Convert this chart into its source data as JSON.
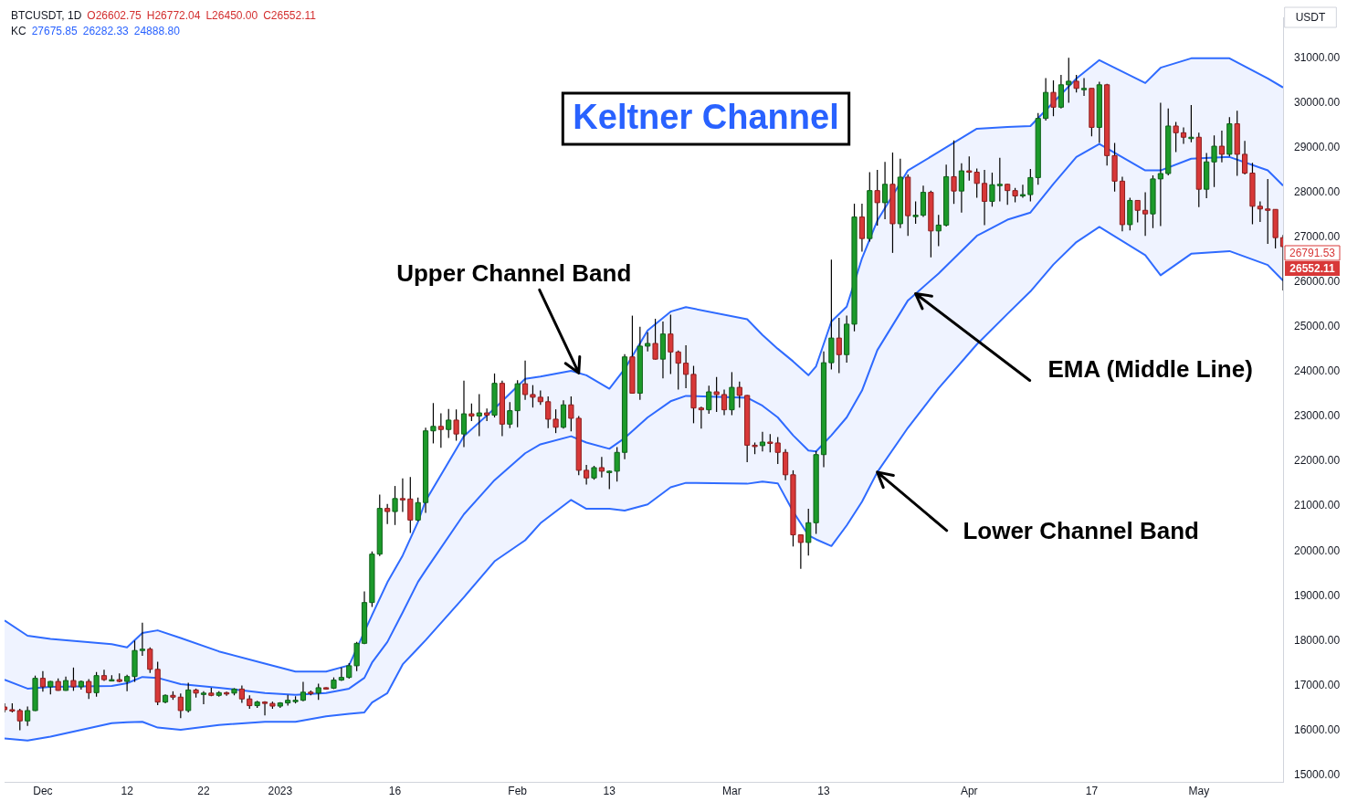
{
  "chart_data": {
    "type": "candlestick",
    "title": "Keltner Channel",
    "annotations": [
      "BTCUSDT, 1D",
      "O26602.75",
      "H26772.04",
      "L26450.00",
      "C26552.11",
      "KC",
      "27675.85",
      "26282.33",
      "24888.80",
      "USDT",
      "26791.53",
      "26552.11",
      {
        "text": "Upper Channel Band",
        "x": "2023-02-09",
        "y": 23970
      },
      {
        "text": "EMA (Middle Line)",
        "x": "2023-03-25",
        "y": 25740
      },
      {
        "text": "Lower Channel Band",
        "x": "2023-03-20",
        "y": 21760
      }
    ],
    "x": [
      "2022-11-26",
      "2022-11-27",
      "2022-11-28",
      "2022-11-29",
      "2022-11-30",
      "2022-12-01",
      "2022-12-02",
      "2022-12-03",
      "2022-12-04",
      "2022-12-05",
      "2022-12-06",
      "2022-12-07",
      "2022-12-08",
      "2022-12-09",
      "2022-12-10",
      "2022-12-11",
      "2022-12-12",
      "2022-12-13",
      "2022-12-14",
      "2022-12-15",
      "2022-12-16",
      "2022-12-17",
      "2022-12-18",
      "2022-12-19",
      "2022-12-20",
      "2022-12-21",
      "2022-12-22",
      "2022-12-23",
      "2022-12-24",
      "2022-12-25",
      "2022-12-26",
      "2022-12-27",
      "2022-12-28",
      "2022-12-29",
      "2022-12-30",
      "2022-12-31",
      "2023-01-01",
      "2023-01-02",
      "2023-01-03",
      "2023-01-04",
      "2023-01-05",
      "2023-01-06",
      "2023-01-07",
      "2023-01-08",
      "2023-01-09",
      "2023-01-10",
      "2023-01-11",
      "2023-01-12",
      "2023-01-13",
      "2023-01-14",
      "2023-01-15",
      "2023-01-16",
      "2023-01-17",
      "2023-01-18",
      "2023-01-19",
      "2023-01-20",
      "2023-01-21",
      "2023-01-22",
      "2023-01-23",
      "2023-01-24",
      "2023-01-25",
      "2023-01-26",
      "2023-01-27",
      "2023-01-28",
      "2023-01-29",
      "2023-01-30",
      "2023-01-31",
      "2023-02-01",
      "2023-02-02",
      "2023-02-03",
      "2023-02-04",
      "2023-02-05",
      "2023-02-06",
      "2023-02-07",
      "2023-02-08",
      "2023-02-09",
      "2023-02-10",
      "2023-02-11",
      "2023-02-12",
      "2023-02-13",
      "2023-02-14",
      "2023-02-15",
      "2023-02-16",
      "2023-02-17",
      "2023-02-18",
      "2023-02-19",
      "2023-02-20",
      "2023-02-21",
      "2023-02-22",
      "2023-02-23",
      "2023-02-24",
      "2023-02-25",
      "2023-02-26",
      "2023-02-27",
      "2023-02-28",
      "2023-03-01",
      "2023-03-02",
      "2023-03-03",
      "2023-03-04",
      "2023-03-05",
      "2023-03-06",
      "2023-03-07",
      "2023-03-08",
      "2023-03-09",
      "2023-03-10",
      "2023-03-11",
      "2023-03-12",
      "2023-03-13",
      "2023-03-14",
      "2023-03-15",
      "2023-03-16",
      "2023-03-17",
      "2023-03-18",
      "2023-03-19",
      "2023-03-20",
      "2023-03-21",
      "2023-03-22",
      "2023-03-23",
      "2023-03-24",
      "2023-03-25",
      "2023-03-26",
      "2023-03-27",
      "2023-03-28",
      "2023-03-29",
      "2023-03-30",
      "2023-03-31",
      "2023-04-01",
      "2023-04-02",
      "2023-04-03",
      "2023-04-04",
      "2023-04-05",
      "2023-04-06",
      "2023-04-07",
      "2023-04-08",
      "2023-04-09",
      "2023-04-10",
      "2023-04-11",
      "2023-04-12",
      "2023-04-13",
      "2023-04-14",
      "2023-04-15",
      "2023-04-16",
      "2023-04-17",
      "2023-04-18",
      "2023-04-19",
      "2023-04-20",
      "2023-04-21",
      "2023-04-22",
      "2023-04-23",
      "2023-04-24",
      "2023-04-25",
      "2023-04-26",
      "2023-04-27",
      "2023-04-28",
      "2023-04-29",
      "2023-04-30",
      "2023-05-01",
      "2023-05-02",
      "2023-05-03",
      "2023-05-04",
      "2023-05-05",
      "2023-05-06",
      "2023-05-07",
      "2023-05-08",
      "2023-05-09",
      "2023-05-10",
      "2023-05-11",
      "2023-05-12"
    ],
    "ohlc": [
      [
        16520,
        16600,
        16400,
        16460
      ],
      [
        16460,
        16600,
        16400,
        16440
      ],
      [
        16440,
        16480,
        16000,
        16210
      ],
      [
        16210,
        16530,
        16100,
        16440
      ],
      [
        16440,
        17220,
        16430,
        17160
      ],
      [
        17160,
        17320,
        16860,
        16970
      ],
      [
        16970,
        17100,
        16800,
        17090
      ],
      [
        17090,
        17160,
        16880,
        16890
      ],
      [
        16890,
        17200,
        16880,
        17110
      ],
      [
        17110,
        17400,
        16880,
        16970
      ],
      [
        16970,
        17110,
        16910,
        17090
      ],
      [
        17090,
        17140,
        16700,
        16840
      ],
      [
        16840,
        17300,
        16750,
        17220
      ],
      [
        17220,
        17350,
        17100,
        17130
      ],
      [
        17130,
        17230,
        17090,
        17130
      ],
      [
        17130,
        17270,
        17070,
        17090
      ],
      [
        17090,
        17240,
        16870,
        17200
      ],
      [
        17200,
        18000,
        17080,
        17780
      ],
      [
        17780,
        18400,
        17660,
        17810
      ],
      [
        17810,
        17850,
        17280,
        17360
      ],
      [
        17360,
        17530,
        16560,
        16630
      ],
      [
        16630,
        16800,
        16600,
        16780
      ],
      [
        16780,
        16870,
        16680,
        16740
      ],
      [
        16740,
        16820,
        16270,
        16440
      ],
      [
        16440,
        17060,
        16400,
        16900
      ],
      [
        16900,
        16930,
        16730,
        16830
      ],
      [
        16830,
        16870,
        16580,
        16830
      ],
      [
        16830,
        16950,
        16760,
        16780
      ],
      [
        16780,
        16870,
        16750,
        16840
      ],
      [
        16840,
        16860,
        16770,
        16830
      ],
      [
        16830,
        16940,
        16780,
        16920
      ],
      [
        16920,
        17000,
        16610,
        16700
      ],
      [
        16700,
        16780,
        16480,
        16550
      ],
      [
        16550,
        16660,
        16500,
        16630
      ],
      [
        16630,
        16650,
        16330,
        16600
      ],
      [
        16600,
        16640,
        16480,
        16540
      ],
      [
        16540,
        16630,
        16500,
        16610
      ],
      [
        16610,
        16790,
        16550,
        16670
      ],
      [
        16670,
        16760,
        16600,
        16670
      ],
      [
        16670,
        17080,
        16650,
        16850
      ],
      [
        16850,
        16890,
        16780,
        16830
      ],
      [
        16830,
        17040,
        16680,
        16950
      ],
      [
        16950,
        16960,
        16910,
        16940
      ],
      [
        16940,
        17180,
        16920,
        17120
      ],
      [
        17120,
        17400,
        17100,
        17180
      ],
      [
        17180,
        17500,
        17150,
        17440
      ],
      [
        17440,
        17970,
        17320,
        17940
      ],
      [
        17940,
        19100,
        17920,
        18850
      ],
      [
        18850,
        19990,
        18750,
        19930
      ],
      [
        19930,
        21260,
        19890,
        20950
      ],
      [
        20950,
        21050,
        20600,
        20880
      ],
      [
        20880,
        21450,
        20580,
        21170
      ],
      [
        21170,
        21620,
        20870,
        21160
      ],
      [
        21160,
        21650,
        20400,
        20690
      ],
      [
        20690,
        21190,
        20660,
        21080
      ],
      [
        21080,
        22750,
        20850,
        22680
      ],
      [
        22680,
        23300,
        22400,
        22780
      ],
      [
        22780,
        23070,
        22300,
        22710
      ],
      [
        22710,
        23170,
        22520,
        22920
      ],
      [
        22920,
        23160,
        22460,
        22610
      ],
      [
        22610,
        23800,
        22320,
        23060
      ],
      [
        23060,
        23290,
        22900,
        23010
      ],
      [
        23010,
        23500,
        22560,
        23080
      ],
      [
        23080,
        23180,
        22900,
        23030
      ],
      [
        23030,
        23960,
        22980,
        23740
      ],
      [
        23740,
        23800,
        22560,
        22830
      ],
      [
        22830,
        23320,
        22740,
        23130
      ],
      [
        23130,
        23810,
        22760,
        23730
      ],
      [
        23730,
        24250,
        23370,
        23490
      ],
      [
        23490,
        23700,
        23200,
        23430
      ],
      [
        23430,
        23580,
        23260,
        23330
      ],
      [
        23330,
        23450,
        22740,
        22940
      ],
      [
        22940,
        23160,
        22630,
        22760
      ],
      [
        22760,
        23360,
        22730,
        23260
      ],
      [
        23260,
        23450,
        22670,
        22960
      ],
      [
        22960,
        23010,
        21690,
        21800
      ],
      [
        21800,
        21920,
        21480,
        21630
      ],
      [
        21630,
        21900,
        21590,
        21860
      ],
      [
        21860,
        22100,
        21640,
        21780
      ],
      [
        21780,
        21800,
        21380,
        21780
      ],
      [
        21780,
        22320,
        21550,
        22200
      ],
      [
        22200,
        24390,
        22050,
        24330
      ],
      [
        24330,
        25250,
        23510,
        23520
      ],
      [
        23520,
        25000,
        23370,
        24570
      ],
      [
        24570,
        24880,
        24450,
        24630
      ],
      [
        24630,
        25180,
        24270,
        24280
      ],
      [
        24280,
        25120,
        23850,
        24840
      ],
      [
        24840,
        25270,
        23950,
        24440
      ],
      [
        24440,
        24470,
        23600,
        24190
      ],
      [
        24190,
        24590,
        23630,
        23940
      ],
      [
        23940,
        24130,
        22850,
        23190
      ],
      [
        23190,
        23220,
        22730,
        23150
      ],
      [
        23150,
        23690,
        23060,
        23550
      ],
      [
        23550,
        23880,
        23100,
        23490
      ],
      [
        23490,
        23600,
        23030,
        23150
      ],
      [
        23150,
        23990,
        23030,
        23650
      ],
      [
        23650,
        23780,
        23200,
        23470
      ],
      [
        23470,
        23480,
        21980,
        22360
      ],
      [
        22360,
        22420,
        22160,
        22350
      ],
      [
        22350,
        22660,
        22220,
        22430
      ],
      [
        22430,
        22610,
        22200,
        22410
      ],
      [
        22410,
        22540,
        21940,
        22200
      ],
      [
        22200,
        22270,
        21580,
        21700
      ],
      [
        21700,
        21800,
        20100,
        20360
      ],
      [
        20360,
        20360,
        19600,
        20190
      ],
      [
        20190,
        20940,
        19900,
        20630
      ],
      [
        20630,
        22230,
        20380,
        22150
      ],
      [
        22150,
        24450,
        21870,
        24200
      ],
      [
        24200,
        26500,
        24050,
        24750
      ],
      [
        24750,
        25200,
        23970,
        24380
      ],
      [
        24380,
        25250,
        24200,
        25060
      ],
      [
        25060,
        27750,
        24900,
        27450
      ],
      [
        27450,
        27750,
        26680,
        26970
      ],
      [
        26970,
        28450,
        26900,
        28040
      ],
      [
        28040,
        28500,
        27260,
        27770
      ],
      [
        27770,
        28680,
        27400,
        28180
      ],
      [
        28180,
        28890,
        26650,
        27300
      ],
      [
        27300,
        28750,
        27200,
        28340
      ],
      [
        28340,
        28400,
        27030,
        27480
      ],
      [
        27480,
        27800,
        27300,
        27490
      ],
      [
        27490,
        28150,
        27450,
        28000
      ],
      [
        28000,
        28040,
        26550,
        27140
      ],
      [
        27140,
        27500,
        26800,
        27270
      ],
      [
        27270,
        28620,
        27240,
        28350
      ],
      [
        28350,
        29160,
        27740,
        28030
      ],
      [
        28030,
        28650,
        27550,
        28480
      ],
      [
        28480,
        28800,
        28260,
        28450
      ],
      [
        28450,
        28530,
        27880,
        28200
      ],
      [
        28200,
        28500,
        27270,
        27800
      ],
      [
        27800,
        28440,
        27680,
        28170
      ],
      [
        28170,
        28770,
        27800,
        28180
      ],
      [
        28180,
        28190,
        27720,
        28040
      ],
      [
        28040,
        28100,
        27780,
        27920
      ],
      [
        27920,
        28170,
        27880,
        27950
      ],
      [
        27950,
        28520,
        27800,
        28330
      ],
      [
        28330,
        29770,
        28170,
        29650
      ],
      [
        29650,
        30550,
        29600,
        30230
      ],
      [
        30230,
        30500,
        29700,
        29900
      ],
      [
        29900,
        30620,
        29870,
        30400
      ],
      [
        30400,
        31000,
        30000,
        30480
      ],
      [
        30480,
        30620,
        30230,
        30320
      ],
      [
        30320,
        30550,
        30150,
        30320
      ],
      [
        30320,
        30320,
        29250,
        29450
      ],
      [
        29450,
        30470,
        29100,
        30400
      ],
      [
        30400,
        30420,
        28600,
        28820
      ],
      [
        28820,
        29100,
        28020,
        28250
      ],
      [
        28250,
        28350,
        27130,
        27280
      ],
      [
        27280,
        27880,
        27150,
        27820
      ],
      [
        27820,
        27820,
        27330,
        27600
      ],
      [
        27600,
        28000,
        27030,
        27520
      ],
      [
        27520,
        28380,
        27200,
        28300
      ],
      [
        28300,
        30000,
        27250,
        28420
      ],
      [
        28420,
        29870,
        28380,
        29480
      ],
      [
        29480,
        29570,
        28900,
        29330
      ],
      [
        29330,
        29450,
        29080,
        29230
      ],
      [
        29230,
        29950,
        29120,
        29230
      ],
      [
        29230,
        29330,
        27670,
        28070
      ],
      [
        28070,
        28880,
        27870,
        28680
      ],
      [
        28680,
        29270,
        28120,
        29030
      ],
      [
        29030,
        29380,
        28670,
        28850
      ],
      [
        28850,
        29680,
        28800,
        29530
      ],
      [
        29530,
        29820,
        28370,
        28850
      ],
      [
        28850,
        29150,
        28400,
        28430
      ],
      [
        28430,
        28660,
        27290,
        27690
      ],
      [
        27690,
        27800,
        27340,
        27630
      ],
      [
        27630,
        28300,
        26850,
        27620
      ],
      [
        27620,
        27620,
        26750,
        26990
      ],
      [
        26990,
        27050,
        25810,
        26790
      ]
    ],
    "series": [
      {
        "type": "line",
        "color": "#2f6bff",
        "x": [
          "2022-11-26",
          "2022-11-29",
          "2022-12-02",
          "2022-12-10",
          "2022-12-12",
          "2022-12-14",
          "2022-12-16",
          "2022-12-19",
          "2022-12-24",
          "2022-12-30",
          "2023-01-03",
          "2023-01-07",
          "2023-01-10",
          "2023-01-12",
          "2023-01-13",
          "2023-01-15",
          "2023-01-17",
          "2023-01-19",
          "2023-01-20",
          "2023-01-25",
          "2023-01-29",
          "2023-02-02",
          "2023-02-04",
          "2023-02-08",
          "2023-02-10",
          "2023-02-13",
          "2023-02-15",
          "2023-02-18",
          "2023-02-21",
          "2023-02-23",
          "2023-03-03",
          "2023-03-05",
          "2023-03-07",
          "2023-03-09",
          "2023-03-11",
          "2023-03-12",
          "2023-03-14",
          "2023-03-16",
          "2023-03-18",
          "2023-03-20",
          "2023-03-24",
          "2023-03-28",
          "2023-04-02",
          "2023-04-06",
          "2023-04-09",
          "2023-04-12",
          "2023-04-15",
          "2023-04-18",
          "2023-04-24",
          "2023-04-26",
          "2023-04-30",
          "2023-05-05",
          "2023-05-10",
          "2023-05-12"
        ],
        "values": [
          18450,
          18110,
          18040,
          17920,
          17850,
          18170,
          18230,
          18060,
          17760,
          17490,
          17310,
          17310,
          17450,
          null,
          18570,
          19300,
          19900,
          20650,
          21120,
          22560,
          23180,
          23840,
          23890,
          24020,
          23920,
          23620,
          24060,
          24920,
          25340,
          25440,
          25170,
          24820,
          24510,
          24230,
          23920,
          24120,
          25120,
          25450,
          26530,
          27370,
          28490,
          28900,
          29420,
          29460,
          29480,
          30010,
          30540,
          30950,
          30440,
          30780,
          30990,
          30990,
          30540,
          30340
        ]
      },
      {
        "type": "line",
        "color": "#2f6bff",
        "x": [
          "2022-11-26",
          "2022-11-29",
          "2022-12-02",
          "2022-12-10",
          "2022-12-12",
          "2022-12-14",
          "2022-12-16",
          "2022-12-19",
          "2022-12-24",
          "2022-12-30",
          "2023-01-03",
          "2023-01-07",
          "2023-01-10",
          "2023-01-12",
          "2023-01-13",
          "2023-01-15",
          "2023-01-17",
          "2023-01-19",
          "2023-01-20",
          "2023-01-25",
          "2023-01-29",
          "2023-02-02",
          "2023-02-04",
          "2023-02-08",
          "2023-02-10",
          "2023-02-13",
          "2023-02-15",
          "2023-02-18",
          "2023-02-21",
          "2023-02-23",
          "2023-03-03",
          "2023-03-05",
          "2023-03-07",
          "2023-03-09",
          "2023-03-11",
          "2023-03-12",
          "2023-03-14",
          "2023-03-16",
          "2023-03-18",
          "2023-03-20",
          "2023-03-24",
          "2023-03-28",
          "2023-04-02",
          "2023-04-06",
          "2023-04-09",
          "2023-04-12",
          "2023-04-15",
          "2023-04-18",
          "2023-04-24",
          "2023-04-26",
          "2023-04-30",
          "2023-05-05",
          "2023-05-10",
          "2023-05-12"
        ],
        "values": [
          15820,
          15770,
          15860,
          16160,
          16180,
          16190,
          16060,
          16010,
          16120,
          16190,
          16190,
          16310,
          16370,
          16400,
          16620,
          16830,
          17470,
          17830,
          18010,
          18970,
          19770,
          20240,
          20620,
          21140,
          20940,
          20940,
          20900,
          21040,
          21420,
          21520,
          21500,
          21550,
          21510,
          20880,
          20350,
          20260,
          20110,
          20570,
          21100,
          21760,
          22750,
          23630,
          24610,
          25290,
          25790,
          26390,
          26890,
          27230,
          26600,
          26150,
          26630,
          26690,
          26380,
          26030
        ]
      },
      {
        "type": "line",
        "color": "#2f6bff",
        "x": [
          "2022-11-26",
          "2022-11-29",
          "2022-12-02",
          "2022-12-10",
          "2022-12-12",
          "2022-12-14",
          "2022-12-16",
          "2022-12-19",
          "2022-12-24",
          "2022-12-30",
          "2023-01-03",
          "2023-01-07",
          "2023-01-10",
          "2023-01-12",
          "2023-01-13",
          "2023-01-15",
          "2023-01-17",
          "2023-01-19",
          "2023-01-20",
          "2023-01-25",
          "2023-01-29",
          "2023-02-02",
          "2023-02-04",
          "2023-02-08",
          "2023-02-10",
          "2023-02-13",
          "2023-02-15",
          "2023-02-18",
          "2023-02-21",
          "2023-02-23",
          "2023-03-03",
          "2023-03-05",
          "2023-03-07",
          "2023-03-09",
          "2023-03-11",
          "2023-03-12",
          "2023-03-14",
          "2023-03-16",
          "2023-03-18",
          "2023-03-20",
          "2023-03-24",
          "2023-03-28",
          "2023-04-02",
          "2023-04-06",
          "2023-04-09",
          "2023-04-12",
          "2023-04-15",
          "2023-04-18",
          "2023-04-24",
          "2023-04-26",
          "2023-04-30",
          "2023-05-05",
          "2023-05-10",
          "2023-05-12"
        ],
        "values": [
          17130,
          16930,
          16970,
          16990,
          17050,
          17190,
          17170,
          17030,
          16950,
          16830,
          16790,
          16830,
          16930,
          17170,
          17510,
          17970,
          18630,
          19310,
          19570,
          20820,
          21580,
          22180,
          22380,
          22560,
          22420,
          22280,
          22520,
          22980,
          23340,
          23460,
          23420,
          23240,
          22980,
          22580,
          22240,
          22220,
          22580,
          22980,
          23580,
          24480,
          25590,
          26190,
          27030,
          27390,
          27550,
          28190,
          28790,
          29080,
          28490,
          28490,
          28750,
          28790,
          28490,
          28150
        ],
        "upper": [
          18450,
          18110,
          18040,
          17920,
          17850,
          18170,
          18230,
          18060,
          17760,
          17490,
          17310,
          17310,
          17450,
          18170,
          18570,
          19300,
          19900,
          20650,
          21120,
          22560,
          23180,
          23840,
          23890,
          24020,
          23920,
          23620,
          24060,
          24920,
          25340,
          25440,
          25170,
          24820,
          24510,
          24230,
          23920,
          24120,
          25120,
          25450,
          26530,
          27370,
          28490,
          28900,
          29420,
          29460,
          29480,
          30010,
          30540,
          30950,
          30440,
          30780,
          30990,
          30990,
          30540,
          30340
        ],
        "lower": [
          15820,
          15770,
          15860,
          16160,
          16180,
          16190,
          16060,
          16010,
          16120,
          16190,
          16190,
          16310,
          16370,
          16400,
          16620,
          16830,
          17470,
          17830,
          18010,
          18970,
          19770,
          20240,
          20620,
          21140,
          20940,
          20940,
          20900,
          21040,
          21420,
          21520,
          21500,
          21550,
          21510,
          20880,
          20350,
          20260,
          20110,
          20570,
          21100,
          21760,
          22750,
          23630,
          24610,
          25290,
          25790,
          26390,
          26890,
          27230,
          26600,
          26150,
          26630,
          26690,
          26380,
          26030
        ]
      }
    ],
    "xlim": [
      "2022-11-26",
      "2023-05-12"
    ],
    "xticks": [
      {
        "value": "2022-12-01",
        "label": "Dec"
      },
      {
        "value": "2022-12-12",
        "label": "12"
      },
      {
        "value": "2022-12-22",
        "label": "22"
      },
      {
        "value": "2023-01-01",
        "label": "2023"
      },
      {
        "value": "2023-01-16",
        "label": "16"
      },
      {
        "value": "2023-02-01",
        "label": "Feb"
      },
      {
        "value": "2023-02-13",
        "label": "13"
      },
      {
        "value": "2023-03-01",
        "label": "Mar"
      },
      {
        "value": "2023-03-13",
        "label": "13"
      },
      {
        "value": "2023-04-01",
        "label": "Apr"
      },
      {
        "value": "2023-04-17",
        "label": "17"
      },
      {
        "value": "2023-05-01",
        "label": "May"
      }
    ],
    "ylim": [
      14850,
      31900
    ],
    "yticks": [
      {
        "value": 15000,
        "label": "15000.00"
      },
      {
        "value": 16000,
        "label": "16000.00"
      },
      {
        "value": 17000,
        "label": "17000.00"
      },
      {
        "value": 18000,
        "label": "18000.00"
      },
      {
        "value": 19000,
        "label": "19000.00"
      },
      {
        "value": 20000,
        "label": "20000.00"
      },
      {
        "value": 21000,
        "label": "21000.00"
      },
      {
        "value": 22000,
        "label": "22000.00"
      },
      {
        "value": 23000,
        "label": "23000.00"
      },
      {
        "value": 24000,
        "label": "24000.00"
      },
      {
        "value": 25000,
        "label": "25000.00"
      },
      {
        "value": 26000,
        "label": "26000.00"
      },
      {
        "value": 27000,
        "label": "27000.00"
      },
      {
        "value": 28000,
        "label": "28000.00"
      },
      {
        "value": 29000,
        "label": "29000.00"
      },
      {
        "value": 30000,
        "label": "30000.00"
      },
      {
        "value": 31000,
        "label": "31000.00"
      }
    ],
    "legend": false
  }
}
